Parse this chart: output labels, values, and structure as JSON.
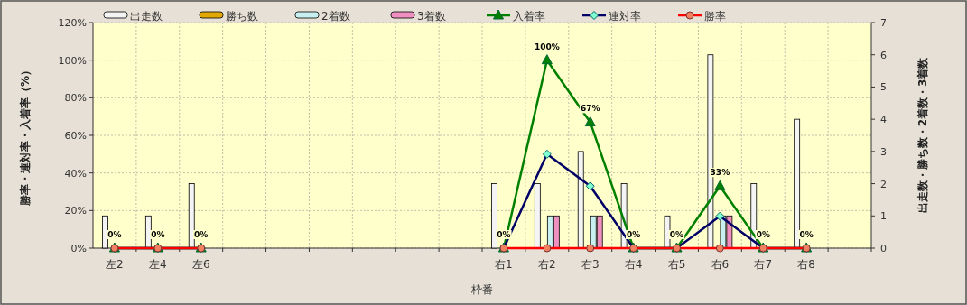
{
  "chart_data": {
    "type": "bar",
    "xlabel": "枠番",
    "ylabel": "勝率・連対率・入着率（%）",
    "y2label": "出走数・勝ち数・2着数・3着数",
    "categories": [
      "左2",
      "左4",
      "左6",
      null,
      null,
      null,
      null,
      null,
      null,
      "右1",
      "右2",
      "右3",
      "右4",
      "右5",
      "右6",
      "右7",
      "右8",
      null
    ],
    "series": [
      {
        "name": "出走数",
        "axis": "y2",
        "color": "#f4f4f4",
        "values": [
          1,
          1,
          2,
          null,
          null,
          null,
          null,
          null,
          null,
          2,
          2,
          3,
          2,
          1,
          6,
          2,
          4,
          null
        ]
      },
      {
        "name": "勝ち数",
        "axis": "y2",
        "color": "#e0a800",
        "values": [
          0,
          0,
          0,
          null,
          null,
          null,
          null,
          null,
          null,
          0,
          0,
          0,
          0,
          0,
          0,
          0,
          0,
          null
        ]
      },
      {
        "name": "2着数",
        "axis": "y2",
        "color": "#c8f0f0",
        "values": [
          0,
          0,
          0,
          null,
          null,
          null,
          null,
          null,
          null,
          0,
          1,
          1,
          0,
          0,
          1,
          0,
          0,
          null
        ]
      },
      {
        "name": "3着数",
        "axis": "y2",
        "color": "#f090c0",
        "values": [
          0,
          0,
          0,
          null,
          null,
          null,
          null,
          null,
          null,
          0,
          1,
          1,
          0,
          0,
          1,
          0,
          0,
          null
        ]
      },
      {
        "name": "入着率",
        "type": "line",
        "marker": "triangle",
        "color": "#008000",
        "values": [
          0,
          0,
          0,
          null,
          null,
          null,
          null,
          null,
          null,
          0,
          100,
          67,
          0,
          0,
          33,
          0,
          0,
          null
        ],
        "value_labels": [
          "0%",
          "0%",
          "0%",
          null,
          null,
          null,
          null,
          null,
          null,
          "0%",
          "100%",
          "67%",
          "0%",
          "0%",
          "33%",
          "0%",
          "0%",
          null
        ]
      },
      {
        "name": "連対率",
        "type": "line",
        "marker": "diamond",
        "color": "#000066",
        "values": [
          0,
          0,
          0,
          null,
          null,
          null,
          null,
          null,
          null,
          0,
          50,
          33,
          0,
          0,
          17,
          0,
          0,
          null
        ]
      },
      {
        "name": "勝率",
        "type": "line",
        "marker": "circle",
        "color": "#ff0000",
        "values": [
          0,
          0,
          0,
          null,
          null,
          null,
          null,
          null,
          null,
          0,
          0,
          0,
          0,
          0,
          0,
          0,
          0,
          null
        ]
      }
    ],
    "ylim": [
      0,
      120
    ],
    "yticks": [
      {
        "value": 0,
        "label": "0%"
      },
      {
        "value": 20,
        "label": "20%"
      },
      {
        "value": 40,
        "label": "40%"
      },
      {
        "value": 60,
        "label": "60%"
      },
      {
        "value": 80,
        "label": "80%"
      },
      {
        "value": 100,
        "label": "100%"
      },
      {
        "value": 120,
        "label": "120%"
      }
    ],
    "y2lim": [
      0,
      7
    ],
    "y2ticks": [
      0,
      1,
      2,
      3,
      4,
      5,
      6,
      7
    ],
    "grid": true,
    "legend": "top"
  }
}
